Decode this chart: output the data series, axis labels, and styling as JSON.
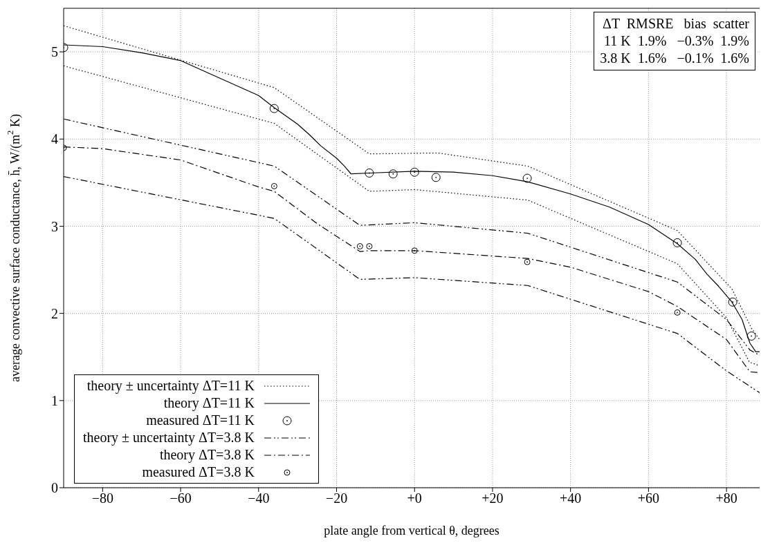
{
  "chart_data": {
    "type": "line",
    "xlabel": "plate angle from vertical θ, degrees",
    "ylabel": "average convective surface conductance, h̄,  W/(m$^{2}$ K)",
    "xlim": [
      -90,
      88.5
    ],
    "xticks": [
      {
        "value": -80,
        "label": "−80"
      },
      {
        "value": -60,
        "label": "−60"
      },
      {
        "value": -40,
        "label": "−40"
      },
      {
        "value": -20,
        "label": "−20"
      },
      {
        "value": 0,
        "label": "+0"
      },
      {
        "value": 20,
        "label": "+20"
      },
      {
        "value": 40,
        "label": "+40"
      },
      {
        "value": 60,
        "label": "+60"
      },
      {
        "value": 80,
        "label": "+80"
      }
    ],
    "ylim": [
      0,
      5.5
    ],
    "yticks": [
      0,
      1,
      2,
      3,
      4,
      5
    ],
    "grid": true,
    "legend": "bottom left",
    "marker": "none",
    "annotations": [
      "ΔT  RMSRE   bias  scatter",
      "11 K  1.9%   −0.3%  1.9%",
      "3.8 K  1.6%   −0.1%  1.6%"
    ],
    "series": [
      {
        "name": "theory ± uncertainty ΔT=11 K",
        "line_style": "dotted",
        "color": "#000000",
        "x": [
          -90,
          -36,
          -11.6,
          6,
          29,
          67.4,
          81.4,
          86.4,
          88.5
        ],
        "values": [
          5.3,
          4.59,
          3.83,
          3.84,
          3.69,
          2.95,
          2.28,
          1.83,
          1.7
        ]
      },
      {
        "line_style": "dotted",
        "color": "#000000",
        "x": [
          -90,
          -36,
          -11.6,
          0,
          29,
          67.4,
          80,
          85.9,
          88.5
        ],
        "values": [
          4.84,
          4.18,
          3.4,
          3.42,
          3.3,
          2.57,
          1.95,
          1.44,
          1.4
        ]
      },
      {
        "name": "theory ΔT=11 K",
        "line_style": "solid",
        "color": "#000000",
        "x": [
          -90,
          -80,
          -70,
          -60,
          -50,
          -40,
          -36,
          -30,
          -27.2,
          -24,
          -20,
          -18,
          -16.3,
          -11.6,
          0,
          10,
          20,
          29,
          40,
          50,
          60,
          67.4,
          72,
          75,
          78,
          81.4,
          84,
          86,
          87.5,
          88.5
        ],
        "values": [
          5.08,
          5.06,
          4.99,
          4.9,
          4.7,
          4.5,
          4.36,
          4.17,
          4.06,
          3.92,
          3.78,
          3.69,
          3.6,
          3.61,
          3.63,
          3.62,
          3.58,
          3.51,
          3.37,
          3.22,
          3.02,
          2.8,
          2.62,
          2.45,
          2.31,
          2.13,
          1.93,
          1.66,
          1.56,
          1.56
        ]
      },
      {
        "name": "measured ΔT=11 K",
        "type": "scatter",
        "marker": "circle",
        "color": "#000000",
        "x": [
          -90,
          -36,
          -11.6,
          -5.5,
          0,
          5.5,
          28.9,
          67.4,
          81.6,
          86.4
        ],
        "values": [
          5.05,
          4.35,
          3.61,
          3.6,
          3.62,
          3.56,
          3.55,
          2.81,
          2.13,
          1.74
        ]
      },
      {
        "name": "theory ± uncertainty ΔT=3.8 K",
        "line_style": "dashdotdot",
        "color": "#000000",
        "x": [
          -90,
          -36,
          -14,
          0,
          29,
          67.4,
          80,
          86,
          88.5
        ],
        "values": [
          4.23,
          3.69,
          3.01,
          3.04,
          2.92,
          2.36,
          1.93,
          1.58,
          1.52
        ]
      },
      {
        "line_style": "dashdotdot",
        "color": "#000000",
        "x": [
          -90,
          -36,
          -14,
          0,
          29,
          67.4,
          80,
          88.5
        ],
        "values": [
          3.57,
          3.09,
          2.39,
          2.41,
          2.32,
          1.77,
          1.34,
          1.09
        ]
      },
      {
        "name": "theory ΔT=3.8 K",
        "line_style": "dashdot",
        "color": "#000000",
        "x": [
          -90,
          -80,
          -60,
          -40,
          -36,
          -25,
          -14,
          -11.6,
          0,
          29,
          40,
          60,
          67.4,
          80,
          86,
          88.5
        ],
        "values": [
          3.91,
          3.89,
          3.76,
          3.45,
          3.4,
          3.03,
          2.71,
          2.72,
          2.72,
          2.63,
          2.53,
          2.25,
          2.08,
          1.7,
          1.33,
          1.32
        ]
      },
      {
        "name": "measured ΔT=3.8 K",
        "type": "scatter",
        "marker": "circle",
        "color": "#000000",
        "x": [
          -90,
          -36,
          -14,
          -11.6,
          0,
          28.9,
          67.4
        ],
        "values": [
          3.9,
          3.46,
          2.77,
          2.77,
          2.72,
          2.59,
          2.01
        ]
      }
    ]
  }
}
